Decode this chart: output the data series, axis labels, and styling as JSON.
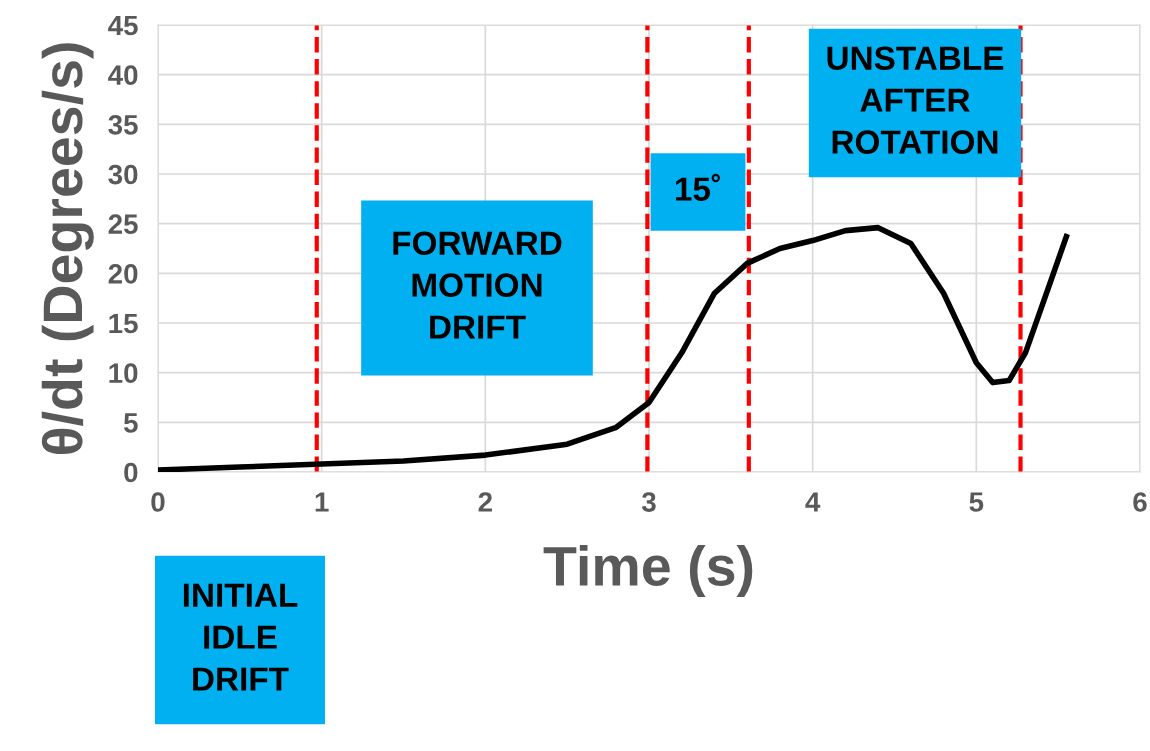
{
  "chart_data": {
    "type": "line",
    "xlabel": "Time (s)",
    "ylabel": "θ/dt (Degrees/s)",
    "x": [
      0,
      0.5,
      1,
      1.5,
      2,
      2.5,
      2.8,
      3,
      3.2,
      3.4,
      3.6,
      3.8,
      4,
      4.2,
      4.4,
      4.6,
      4.8,
      5,
      5.1,
      5.2,
      5.3,
      5.45,
      5.55
    ],
    "series": [
      {
        "color": "#000000",
        "values": [
          0.2,
          0.5,
          0.8,
          1.1,
          1.7,
          2.8,
          4.5,
          7,
          12,
          18,
          21,
          22.5,
          23.3,
          24.3,
          24.6,
          23,
          18,
          11,
          9,
          9.2,
          12,
          19,
          23.7
        ]
      }
    ],
    "xlim": [
      0,
      6
    ],
    "xticks": [
      0,
      1,
      2,
      3,
      4,
      5,
      6
    ],
    "ylim": [
      0,
      45
    ],
    "yticks": [
      0,
      5,
      10,
      15,
      20,
      25,
      30,
      35,
      40,
      45
    ],
    "grid": true,
    "marker": "none",
    "line_style": "solid",
    "ref_lines": [
      {
        "axis": "x",
        "value": 0.97,
        "color": "#ff0000",
        "line_style": "dashed"
      },
      {
        "axis": "x",
        "value": 2.99,
        "color": "#ff0000",
        "line_style": "dashed"
      },
      {
        "axis": "x",
        "value": 3.61,
        "color": "#ff0000",
        "line_style": "dashed"
      },
      {
        "axis": "x",
        "value": 5.27,
        "color": "#ff0000",
        "line_style": "dashed"
      }
    ],
    "annotations": [
      "INITIAL\nIDLE\nDRIFT",
      "FORWARD\nMOTION\nDRIFT",
      "15˚",
      "UNSTABLE\nAFTER\nROTATION"
    ]
  }
}
